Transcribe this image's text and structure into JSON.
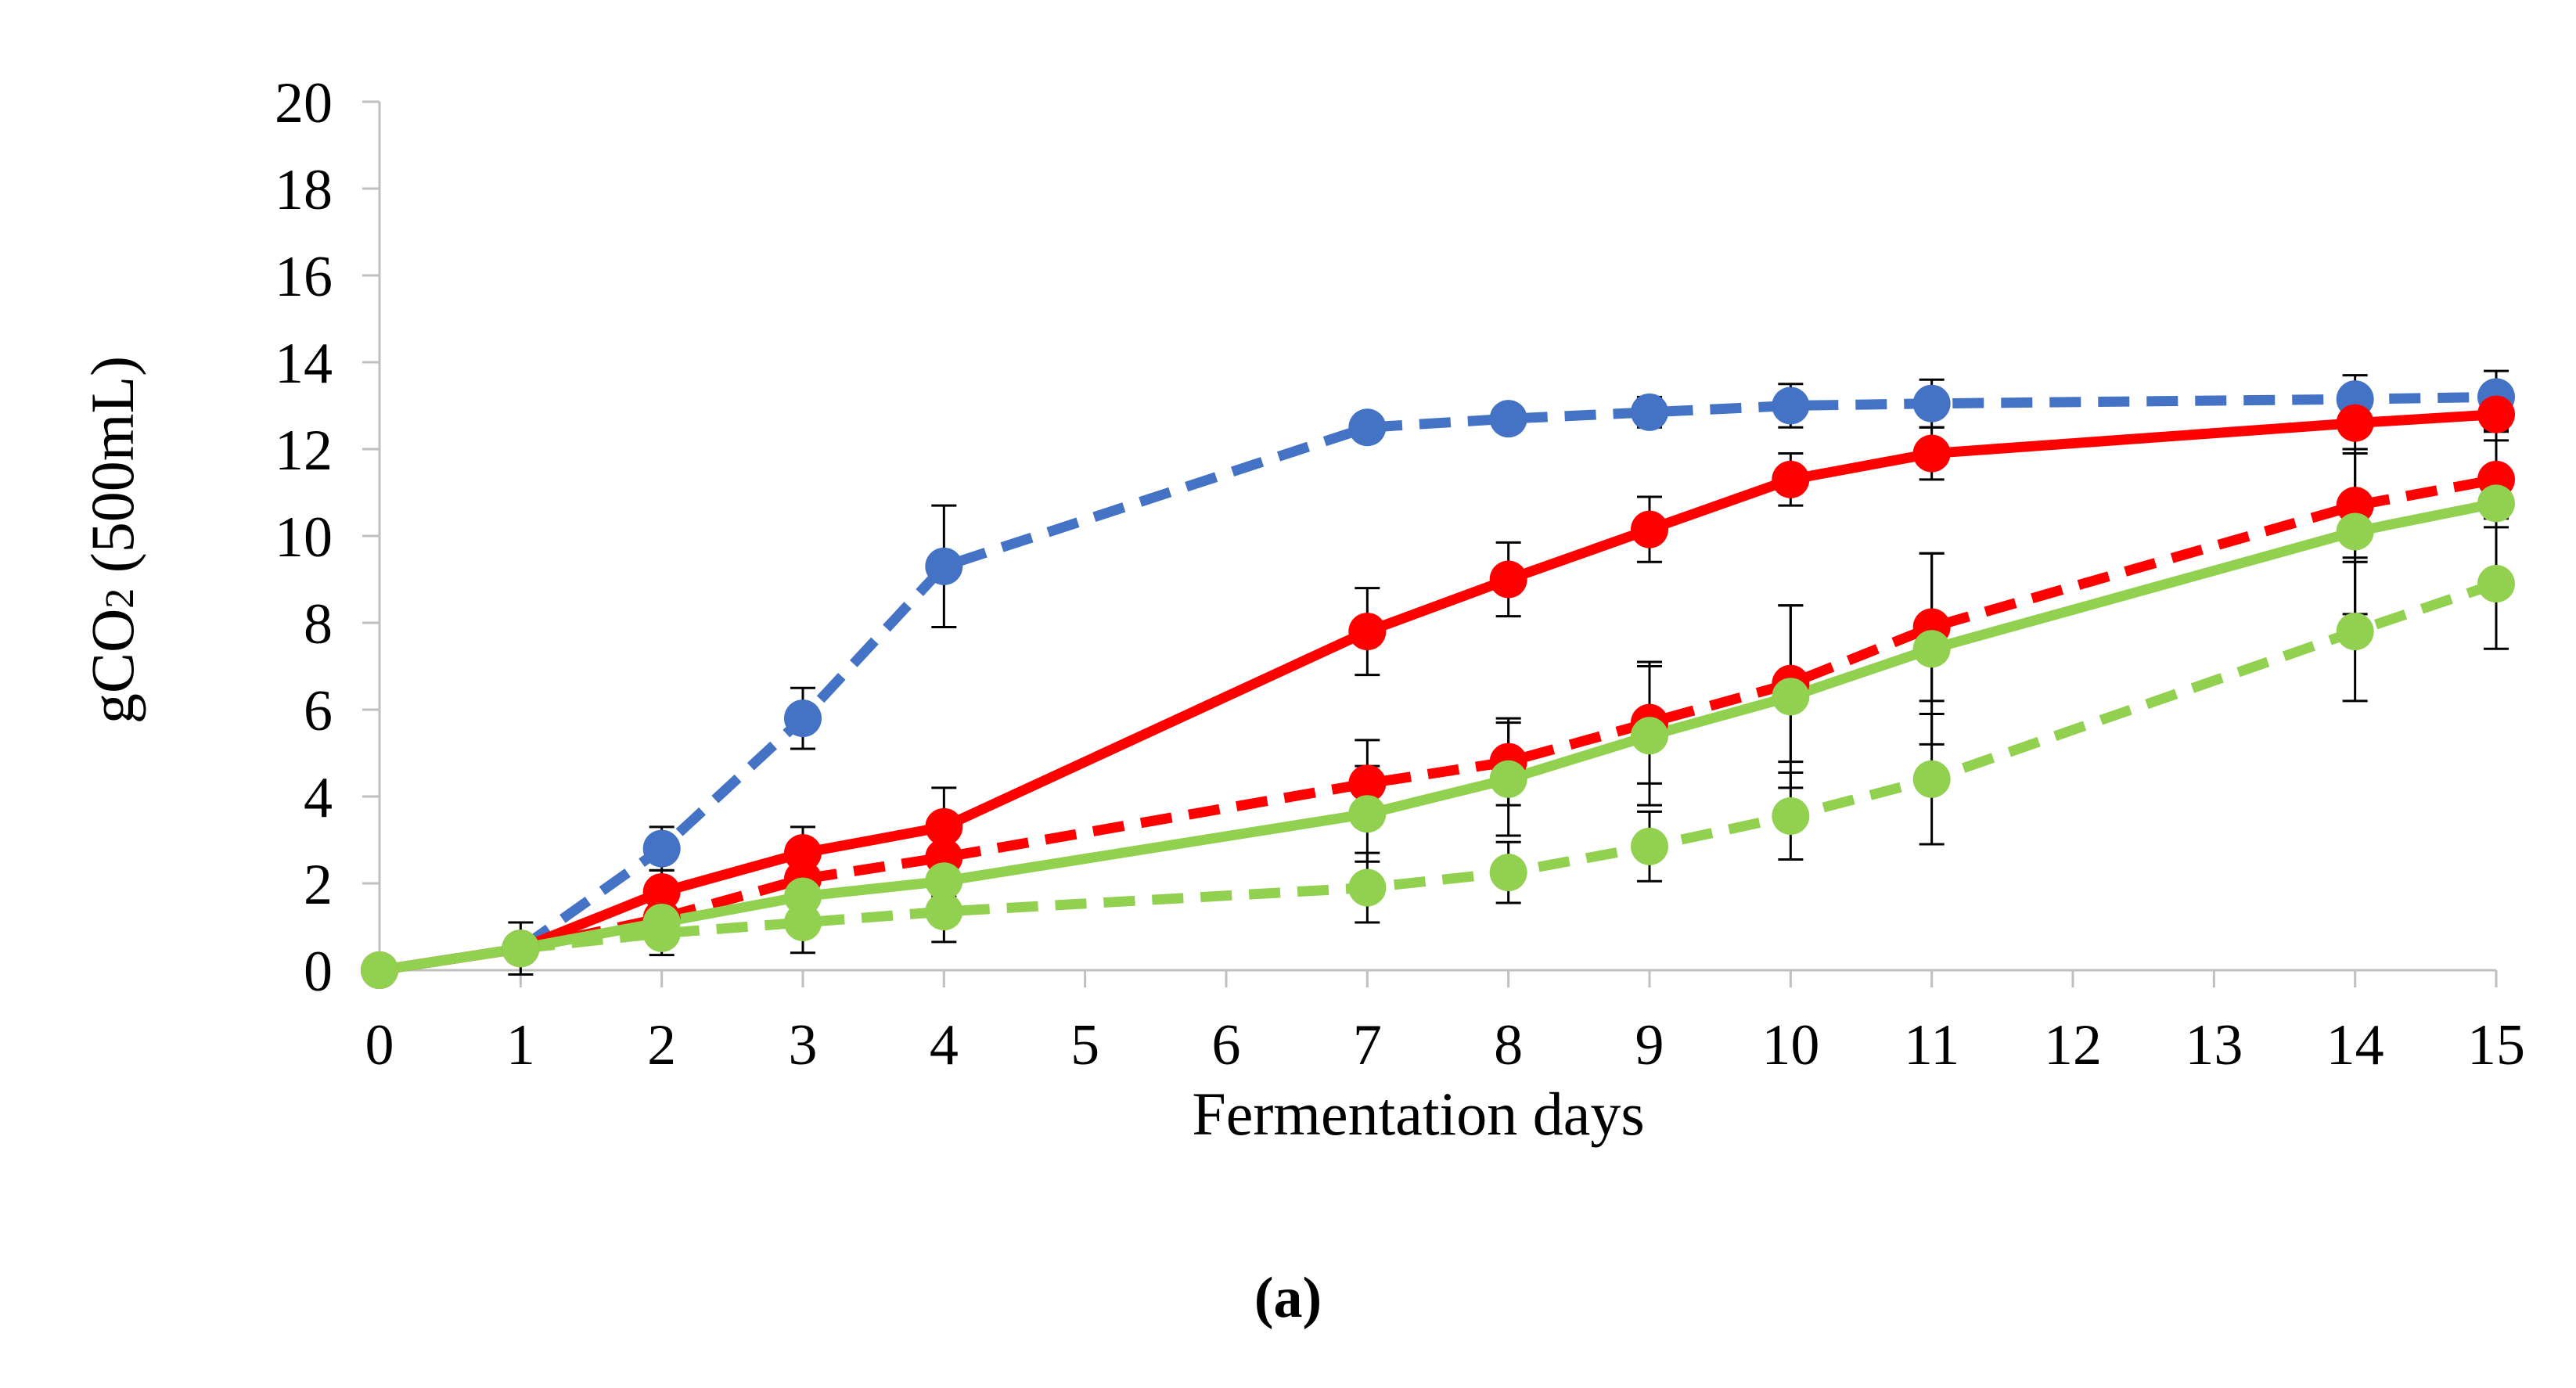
{
  "chart_data": {
    "type": "line",
    "title": "",
    "xlabel": "Fermentation days",
    "ylabel_main": "gCO",
    "ylabel_sub": "2",
    "ylabel_suffix": " (500mL)",
    "panel_label": "(a)",
    "xlim": [
      0,
      15
    ],
    "ylim": [
      0,
      20
    ],
    "y_ticks": [
      0,
      2,
      4,
      6,
      8,
      10,
      12,
      14,
      16,
      18,
      20
    ],
    "x_tick_labels": [
      "0",
      "1",
      "2",
      "3",
      "4",
      "5",
      "6",
      "7",
      "8",
      "9",
      "10",
      "11",
      "12",
      "13",
      "14",
      "15"
    ],
    "grid": false,
    "legend": "none",
    "series": [
      {
        "name": "blue dashed",
        "color": "#4472C4",
        "dashed": true,
        "points": [
          {
            "x": 0,
            "y": 0,
            "err": 0
          },
          {
            "x": 1,
            "y": 0.5,
            "err": 0.3
          },
          {
            "x": 2,
            "y": 2.8,
            "err": 0.5
          },
          {
            "x": 3,
            "y": 5.8,
            "err": 0.7
          },
          {
            "x": 4,
            "y": 9.3,
            "err": 1.4
          },
          {
            "x": 7,
            "y": 12.5,
            "err": 0.3
          },
          {
            "x": 8,
            "y": 12.7,
            "err": 0.3
          },
          {
            "x": 9,
            "y": 12.85,
            "err": 0.35
          },
          {
            "x": 10,
            "y": 13.0,
            "err": 0.5
          },
          {
            "x": 11,
            "y": 13.05,
            "err": 0.55
          },
          {
            "x": 14,
            "y": 13.15,
            "err": 0.55
          },
          {
            "x": 15,
            "y": 13.2,
            "err": 0.6
          }
        ]
      },
      {
        "name": "red solid",
        "color": "#FF0000",
        "dashed": false,
        "points": [
          {
            "x": 0,
            "y": 0,
            "err": 0
          },
          {
            "x": 1,
            "y": 0.5,
            "err": 0.6
          },
          {
            "x": 2,
            "y": 1.8,
            "err": 0.5
          },
          {
            "x": 3,
            "y": 2.7,
            "err": 0.6
          },
          {
            "x": 4,
            "y": 3.3,
            "err": 0.9
          },
          {
            "x": 7,
            "y": 7.8,
            "err": 1.0
          },
          {
            "x": 8,
            "y": 9.0,
            "err": 0.85
          },
          {
            "x": 9,
            "y": 10.15,
            "err": 0.75
          },
          {
            "x": 10,
            "y": 11.3,
            "err": 0.6
          },
          {
            "x": 11,
            "y": 11.9,
            "err": 0.6
          },
          {
            "x": 14,
            "y": 12.6,
            "err": 0.6
          },
          {
            "x": 15,
            "y": 12.8,
            "err": 0.6
          }
        ]
      },
      {
        "name": "red dashed",
        "color": "#FF0000",
        "dashed": true,
        "points": [
          {
            "x": 0,
            "y": 0,
            "err": 0
          },
          {
            "x": 1,
            "y": 0.5,
            "err": 0.2
          },
          {
            "x": 2,
            "y": 1.2,
            "err": 0.4
          },
          {
            "x": 3,
            "y": 2.1,
            "err": 0.9
          },
          {
            "x": 4,
            "y": 2.6,
            "err": 0.9
          },
          {
            "x": 7,
            "y": 4.3,
            "err": 1.0
          },
          {
            "x": 8,
            "y": 4.8,
            "err": 1.0
          },
          {
            "x": 9,
            "y": 5.7,
            "err": 1.4
          },
          {
            "x": 10,
            "y": 6.6,
            "err": 1.8
          },
          {
            "x": 11,
            "y": 7.9,
            "err": 1.7
          },
          {
            "x": 14,
            "y": 10.7,
            "err": 1.2
          },
          {
            "x": 15,
            "y": 11.3,
            "err": 1.1
          }
        ]
      },
      {
        "name": "green solid",
        "color": "#92D050",
        "dashed": false,
        "points": [
          {
            "x": 0,
            "y": 0,
            "err": 0
          },
          {
            "x": 1,
            "y": 0.5,
            "err": 0.2
          },
          {
            "x": 2,
            "y": 1.1,
            "err": 0.4
          },
          {
            "x": 3,
            "y": 1.7,
            "err": 0.5
          },
          {
            "x": 4,
            "y": 2.05,
            "err": 0.5
          },
          {
            "x": 7,
            "y": 3.6,
            "err": 1.1
          },
          {
            "x": 8,
            "y": 4.4,
            "err": 1.3
          },
          {
            "x": 9,
            "y": 5.4,
            "err": 1.6
          },
          {
            "x": 10,
            "y": 6.3,
            "err": 2.1
          },
          {
            "x": 11,
            "y": 7.4,
            "err": 2.2
          },
          {
            "x": 14,
            "y": 10.1,
            "err": 1.9
          },
          {
            "x": 15,
            "y": 10.75,
            "err": 1.7
          }
        ]
      },
      {
        "name": "green dashed",
        "color": "#92D050",
        "dashed": true,
        "points": [
          {
            "x": 0,
            "y": 0,
            "err": 0
          },
          {
            "x": 1,
            "y": 0.5,
            "err": 0.2
          },
          {
            "x": 2,
            "y": 0.85,
            "err": 0.5
          },
          {
            "x": 3,
            "y": 1.1,
            "err": 0.7
          },
          {
            "x": 4,
            "y": 1.35,
            "err": 0.7
          },
          {
            "x": 7,
            "y": 1.9,
            "err": 0.8
          },
          {
            "x": 8,
            "y": 2.25,
            "err": 0.7
          },
          {
            "x": 9,
            "y": 2.85,
            "err": 0.8
          },
          {
            "x": 10,
            "y": 3.55,
            "err": 1.0
          },
          {
            "x": 11,
            "y": 4.4,
            "err": 1.5
          },
          {
            "x": 14,
            "y": 7.8,
            "err": 1.6
          },
          {
            "x": 15,
            "y": 8.9,
            "err": 1.5
          }
        ]
      }
    ]
  }
}
